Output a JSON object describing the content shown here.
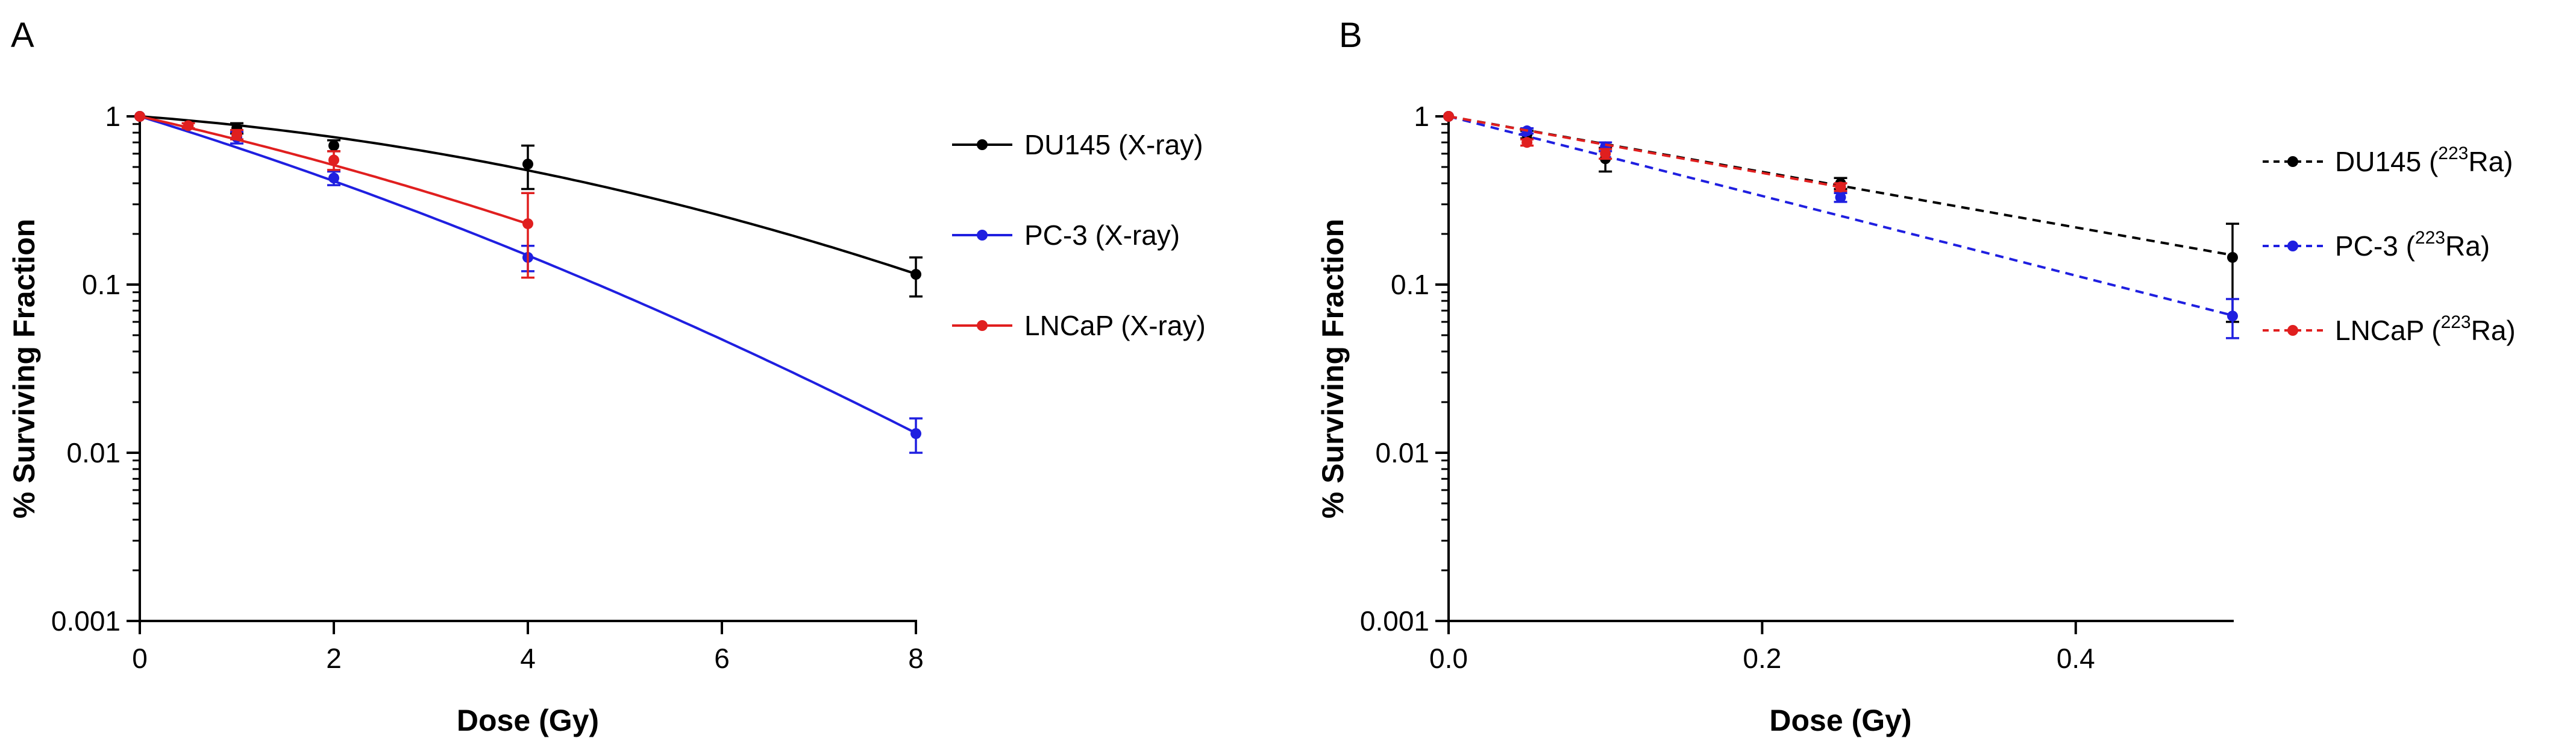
{
  "chart_data": [
    {
      "panel_label": "A",
      "type": "line",
      "title": "",
      "xlabel": "Dose (Gy)",
      "ylabel": "% Surviving Fraction",
      "xlim": [
        0,
        8
      ],
      "ylim": [
        0.001,
        1
      ],
      "yscale": "log",
      "x_ticks": [
        0,
        2,
        4,
        6,
        8
      ],
      "x_tick_labels": [
        "0",
        "2",
        "4",
        "6",
        "8"
      ],
      "y_ticks": [
        1,
        0.1,
        0.01,
        0.001
      ],
      "y_tick_labels": [
        "1",
        "0.1",
        "0.01",
        "0.001"
      ],
      "legend_position": "top-right outside",
      "series": [
        {
          "name": "DU145 (X-ray)",
          "legend_prefix": "DU145 (X-ray)",
          "legend_sup": "",
          "legend_suffix": "",
          "color": "#000000",
          "line_style": "solid",
          "x": [
            0,
            1,
            2,
            4,
            8
          ],
          "values": [
            1.0,
            0.85,
            0.67,
            0.52,
            0.115
          ],
          "err": [
            0,
            0.06,
            0.05,
            0.15,
            0.03
          ],
          "fit": "lq",
          "alpha": 0.1,
          "beta": 0.0212
        },
        {
          "name": "PC-3 (X-ray)",
          "legend_prefix": "PC-3 (X-ray)",
          "legend_sup": "",
          "legend_suffix": "",
          "color": "#1f1fe0",
          "line_style": "solid",
          "x": [
            0,
            1,
            2,
            4,
            8
          ],
          "values": [
            1.0,
            0.75,
            0.43,
            0.145,
            0.013
          ],
          "err": [
            0,
            0.06,
            0.04,
            0.025,
            0.003
          ],
          "fit": "lq",
          "alpha": 0.41,
          "beta": 0.0165
        },
        {
          "name": "LNCaP (X-ray)",
          "legend_prefix": "LNCaP (X-ray)",
          "legend_sup": "",
          "legend_suffix": "",
          "color": "#e01f1f",
          "line_style": "solid",
          "x": [
            0,
            0.5,
            1,
            2,
            4
          ],
          "values": [
            1.0,
            0.88,
            0.78,
            0.55,
            0.23
          ],
          "err": [
            0,
            0.03,
            0.05,
            0.07,
            0.12
          ],
          "fit": "lq",
          "alpha": 0.3,
          "beta": 0.017
        }
      ]
    },
    {
      "panel_label": "B",
      "type": "line",
      "title": "",
      "xlabel": "Dose (Gy)",
      "ylabel": "% Surviving Fraction",
      "xlim": [
        0,
        0.5
      ],
      "ylim": [
        0.001,
        1
      ],
      "yscale": "log",
      "x_ticks": [
        0,
        0.2,
        0.4
      ],
      "x_tick_labels": [
        "0.0",
        "0.2",
        "0.4"
      ],
      "y_ticks": [
        1,
        0.1,
        0.01,
        0.001
      ],
      "y_tick_labels": [
        "1",
        "0.1",
        "0.01",
        "0.001"
      ],
      "legend_position": "top-right outside",
      "series": [
        {
          "name": "DU145 (223Ra)",
          "legend_prefix": "DU145 (",
          "legend_sup": "223",
          "legend_suffix": "Ra)",
          "color": "#000000",
          "line_style": "dashed",
          "x": [
            0,
            0.05,
            0.1,
            0.25,
            0.5
          ],
          "values": [
            1.0,
            0.78,
            0.56,
            0.4,
            0.145
          ],
          "err": [
            0,
            0.04,
            0.09,
            0.03,
            0.085
          ],
          "fit": "exp",
          "alpha": 3.8
        },
        {
          "name": "PC-3 (223Ra)",
          "legend_prefix": "PC-3 (",
          "legend_sup": "223",
          "legend_suffix": "Ra)",
          "color": "#1f1fe0",
          "line_style": "dashed",
          "x": [
            0,
            0.05,
            0.1,
            0.25,
            0.5
          ],
          "values": [
            1.0,
            0.82,
            0.66,
            0.33,
            0.065
          ],
          "err": [
            0,
            0.03,
            0.04,
            0.02,
            0.017
          ],
          "fit": "exp",
          "alpha": 5.45
        },
        {
          "name": "LNCaP (223Ra)",
          "legend_prefix": "LNCaP (",
          "legend_sup": "223",
          "legend_suffix": "Ra)",
          "color": "#e01f1f",
          "line_style": "dashed",
          "x": [
            0,
            0.05,
            0.1,
            0.25
          ],
          "values": [
            1.0,
            0.7,
            0.6,
            0.38
          ],
          "err": [
            0,
            0.03,
            0.04,
            0.02
          ],
          "fit": "exp",
          "alpha": 3.87
        }
      ]
    }
  ]
}
